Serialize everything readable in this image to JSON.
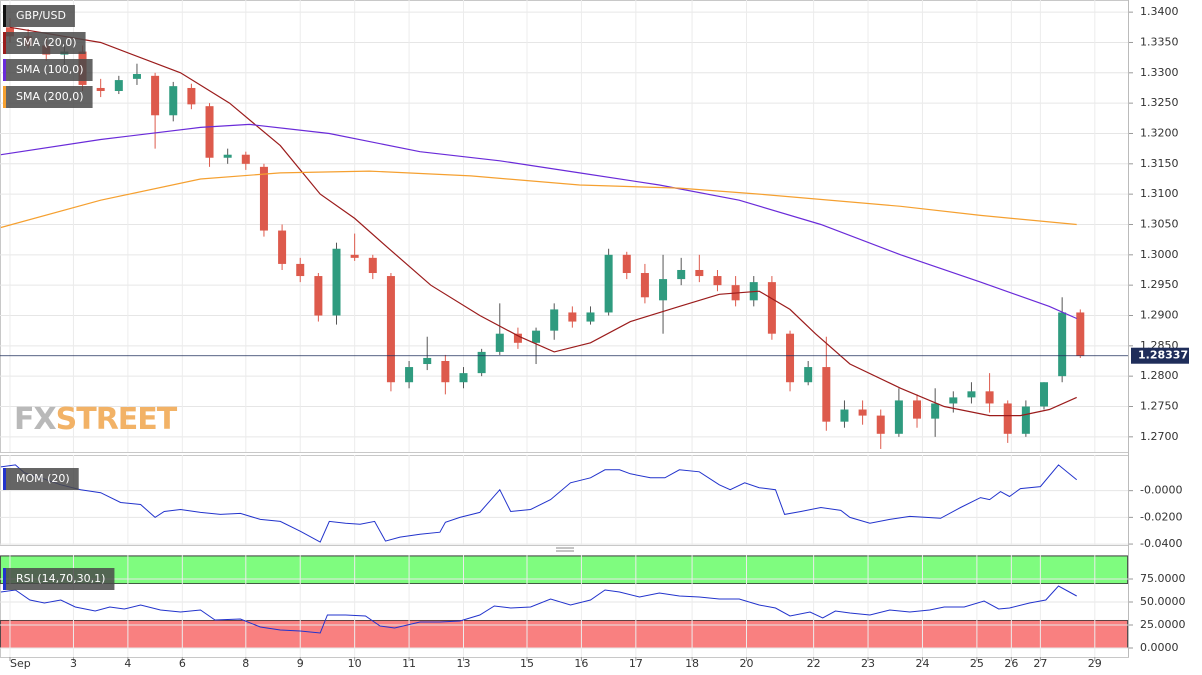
{
  "chart_data": [
    {
      "type": "candlestick",
      "name": "GBP/USD",
      "up_color": "#2f9b7f",
      "down_color": "#dd5a4c",
      "grid": true,
      "open": [
        1.3375,
        1.336,
        1.3345,
        1.333,
        1.3335,
        1.3275,
        1.327,
        1.329,
        1.3295,
        1.323,
        1.3275,
        1.3245,
        1.316,
        1.3165,
        1.3145,
        1.304,
        1.2985,
        1.2965,
        1.29,
        1.3,
        1.2995,
        1.2965,
        1.279,
        1.282,
        1.2825,
        1.279,
        1.2805,
        1.284,
        1.287,
        1.2855,
        1.2875,
        1.2905,
        1.289,
        1.2905,
        1.3,
        1.297,
        1.2925,
        1.296,
        1.2975,
        1.2965,
        1.295,
        1.2925,
        1.2955,
        1.287,
        1.279,
        1.2815,
        1.2725,
        1.2745,
        1.2735,
        1.2705,
        1.276,
        1.273,
        1.2755,
        1.2765,
        1.2775,
        1.2755,
        1.2705,
        1.275,
        1.28,
        1.2905
      ],
      "high": [
        1.339,
        1.3372,
        1.336,
        1.3348,
        1.3345,
        1.329,
        1.3295,
        1.3315,
        1.33,
        1.3285,
        1.3282,
        1.325,
        1.3175,
        1.317,
        1.315,
        1.305,
        1.2995,
        1.297,
        1.302,
        1.3035,
        1.3,
        1.297,
        1.2825,
        1.2865,
        1.2835,
        1.2815,
        1.2845,
        1.292,
        1.288,
        1.288,
        1.292,
        1.2915,
        1.2915,
        1.301,
        1.3005,
        1.2985,
        1.3,
        1.2995,
        1.3,
        1.2975,
        1.2965,
        1.2965,
        1.2965,
        1.2875,
        1.2825,
        1.2865,
        1.276,
        1.276,
        1.2745,
        1.278,
        1.277,
        1.278,
        1.2775,
        1.279,
        1.2805,
        1.276,
        1.276,
        1.279,
        1.293,
        1.291
      ],
      "low": [
        1.335,
        1.334,
        1.332,
        1.331,
        1.327,
        1.326,
        1.3265,
        1.328,
        1.3175,
        1.322,
        1.324,
        1.3145,
        1.315,
        1.314,
        1.303,
        1.2975,
        1.2955,
        1.289,
        1.2885,
        1.299,
        1.296,
        1.2775,
        1.278,
        1.281,
        1.277,
        1.278,
        1.28,
        1.2835,
        1.2845,
        1.282,
        1.286,
        1.288,
        1.2885,
        1.29,
        1.296,
        1.292,
        1.287,
        1.295,
        1.2955,
        1.294,
        1.2915,
        1.2915,
        1.286,
        1.2775,
        1.2785,
        1.271,
        1.2715,
        1.272,
        1.268,
        1.27,
        1.2715,
        1.27,
        1.274,
        1.2755,
        1.274,
        1.269,
        1.27,
        1.2745,
        1.279,
        1.283
      ],
      "close": [
        1.336,
        1.3345,
        1.333,
        1.3335,
        1.328,
        1.327,
        1.3288,
        1.3298,
        1.323,
        1.3278,
        1.3248,
        1.316,
        1.3165,
        1.315,
        1.304,
        1.2985,
        1.2965,
        1.29,
        1.301,
        1.2995,
        1.297,
        1.279,
        1.2815,
        1.283,
        1.279,
        1.2805,
        1.284,
        1.287,
        1.2855,
        1.2875,
        1.291,
        1.289,
        1.2905,
        1.3,
        1.297,
        1.293,
        1.296,
        1.2975,
        1.2965,
        1.295,
        1.2925,
        1.2955,
        1.287,
        1.279,
        1.2815,
        1.2725,
        1.2745,
        1.2735,
        1.2705,
        1.276,
        1.273,
        1.2755,
        1.2765,
        1.2775,
        1.2755,
        1.2705,
        1.275,
        1.279,
        1.2905,
        1.2834
      ],
      "overlays": [
        {
          "name": "SMA (20,0)",
          "color": "#9b1c1c",
          "x": [
            0,
            5,
            9.4,
            12.1,
            14.9,
            17.1,
            19,
            20.9,
            23.2,
            25.9,
            28.1,
            30,
            32,
            34.2,
            36.9,
            39.1,
            41.3,
            43,
            44.4,
            46.3,
            49.1,
            51.5,
            54,
            55.7,
            57.3,
            58.8
          ],
          "values": [
            1.3375,
            1.335,
            1.33,
            1.325,
            1.318,
            1.31,
            1.306,
            1.301,
            1.295,
            1.29,
            1.2865,
            1.284,
            1.2855,
            1.289,
            1.2915,
            1.2935,
            1.294,
            1.291,
            1.287,
            1.282,
            1.278,
            1.275,
            1.2735,
            1.2735,
            1.2745,
            1.2765
          ]
        },
        {
          "name": "SMA (100,0)",
          "color": "#6a2bd9",
          "x": [
            -0.5,
            5,
            10.5,
            13.2,
            17.6,
            22.6,
            27,
            31.4,
            35.8,
            40.2,
            44.7,
            49.1,
            53.5,
            57.3,
            58.8
          ],
          "values": [
            1.3165,
            1.319,
            1.321,
            1.3215,
            1.32,
            1.317,
            1.3155,
            1.3135,
            1.3115,
            1.309,
            1.305,
            1.3,
            1.2955,
            1.2915,
            1.2895
          ]
        },
        {
          "name": "SMA (200,0)",
          "color": "#f5a030",
          "x": [
            -0.5,
            5,
            10.5,
            14.9,
            19.8,
            25.4,
            31.4,
            36.9,
            41.3,
            49.1,
            53.5,
            58.8
          ],
          "values": [
            1.3045,
            1.309,
            1.3125,
            1.3135,
            1.3138,
            1.313,
            1.3115,
            1.311,
            1.31,
            1.308,
            1.3065,
            1.305
          ]
        }
      ],
      "last_price": {
        "value": 1.28337,
        "label": "1.28337",
        "color": "#1f2d5a"
      },
      "watermark": [
        "FX",
        "STREET"
      ],
      "xlim": [
        -0.55,
        61.63
      ],
      "ylim": [
        1.2675,
        1.342
      ],
      "yticks": [
        {
          "value": 1.34,
          "label": "1.3400"
        },
        {
          "value": 1.335,
          "label": "1.3350"
        },
        {
          "value": 1.33,
          "label": "1.3300"
        },
        {
          "value": 1.325,
          "label": "1.3250"
        },
        {
          "value": 1.32,
          "label": "1.3200"
        },
        {
          "value": 1.315,
          "label": "1.3150"
        },
        {
          "value": 1.31,
          "label": "1.3100"
        },
        {
          "value": 1.305,
          "label": "1.3050"
        },
        {
          "value": 1.3,
          "label": "1.3000"
        },
        {
          "value": 1.295,
          "label": "1.2950"
        },
        {
          "value": 1.29,
          "label": "1.2900"
        },
        {
          "value": 1.285,
          "label": "1.2850"
        },
        {
          "value": 1.28,
          "label": "1.2800"
        },
        {
          "value": 1.275,
          "label": "1.2750"
        },
        {
          "value": 1.27,
          "label": "1.2700"
        }
      ]
    },
    {
      "type": "line",
      "grid": true,
      "series": [
        {
          "name": "MOM (20)",
          "color": "#2233cc",
          "x": [
            -0.5,
            0.3,
            0.8,
            1.7,
            2.8,
            3.9,
            5,
            6.1,
            7.2,
            8,
            8.5,
            9.4,
            10.5,
            11.6,
            12.7,
            13.8,
            14.9,
            16,
            17.1,
            17.6,
            18.5,
            19.3,
            20.1,
            20.7,
            21.5,
            22.6,
            23.7,
            24,
            24.8,
            25.9,
            27,
            27.6,
            28.7,
            29.8,
            30.9,
            32,
            32.8,
            33.6,
            34.2,
            35.3,
            36.1,
            36.9,
            38,
            39.1,
            39.7,
            40.5,
            41.3,
            42.2,
            42.7,
            43.6,
            44.7,
            45.8,
            46.3,
            47.4,
            48.5,
            49.6,
            51.3,
            52.4,
            53.5,
            54,
            54.6,
            55.1,
            55.7,
            56.8,
            57.8,
            58.8
          ],
          "values": [
            0.0178,
            0.0193,
            0.0133,
            0.0096,
            0.0044,
            0.0007,
            -0.0015,
            -0.0089,
            -0.0104,
            -0.02,
            -0.0156,
            -0.0141,
            -0.0163,
            -0.0178,
            -0.017,
            -0.0215,
            -0.023,
            -0.0304,
            -0.0385,
            -0.023,
            -0.0244,
            -0.0252,
            -0.023,
            -0.0378,
            -0.0348,
            -0.0326,
            -0.0311,
            -0.0237,
            -0.02,
            -0.0163,
            0.0007,
            -0.0156,
            -0.0141,
            -0.0067,
            0.0059,
            0.0096,
            0.0156,
            0.0156,
            0.0126,
            0.0096,
            0.0096,
            0.0156,
            0.0141,
            0.0044,
            0.0007,
            0.0059,
            0.0022,
            0.0007,
            -0.0178,
            -0.0156,
            -0.0126,
            -0.0148,
            -0.02,
            -0.0244,
            -0.0215,
            -0.0193,
            -0.0207,
            -0.0126,
            -0.0052,
            -0.0067,
            -0.0007,
            -0.0044,
            0.0015,
            0.003,
            0.0193,
            0.0081
          ]
        }
      ],
      "xlim": [
        -0.55,
        61.63
      ],
      "ylim": [
        -0.0407,
        0.0267
      ],
      "yticks": [
        {
          "value": 0,
          "label": "-0.0000"
        },
        {
          "value": -0.02,
          "label": "-0.0200"
        },
        {
          "value": -0.04,
          "label": "-0.0400"
        }
      ]
    },
    {
      "type": "line",
      "grid": true,
      "series": [
        {
          "name": "RSI (14,70,30,1)",
          "color": "#2233cc",
          "x": [
            -0.5,
            0.3,
            1.1,
            1.9,
            2.8,
            3.6,
            4.7,
            5.5,
            6.3,
            7.2,
            8.3,
            9.4,
            10.5,
            11.3,
            12.7,
            13.8,
            14.9,
            16,
            17.1,
            17.5,
            18.5,
            19.6,
            20.4,
            21.2,
            22.6,
            23.7,
            24.8,
            25.9,
            26.7,
            27.6,
            28.7,
            29.8,
            30.9,
            32,
            32.8,
            33.6,
            34.7,
            35.8,
            36.9,
            38,
            39.1,
            40.2,
            41.3,
            42.2,
            43,
            44.1,
            44.8,
            45.5,
            46.3,
            47.4,
            48.5,
            49.6,
            50.7,
            51.5,
            52.6,
            53.7,
            54.5,
            55.1,
            56.2,
            57.1,
            57.8,
            58.8
          ],
          "values": [
            60.9,
            63.0,
            52.2,
            48.9,
            52.2,
            44.6,
            40.2,
            44.6,
            42.4,
            46.7,
            41.3,
            39.1,
            41.3,
            30.4,
            31.5,
            22.8,
            19.6,
            18.5,
            16.3,
            35.9,
            35.9,
            34.8,
            23.9,
            21.7,
            28.3,
            28.3,
            29.3,
            35.9,
            45.7,
            43.5,
            44.6,
            53.3,
            46.7,
            52.2,
            63.0,
            60.9,
            55.4,
            59.8,
            56.5,
            55.4,
            53.3,
            53.3,
            46.7,
            43.5,
            34.8,
            39.1,
            32.6,
            40.2,
            38.0,
            35.9,
            41.3,
            39.1,
            41.3,
            44.6,
            44.6,
            51.1,
            42.4,
            43.5,
            48.9,
            52.2,
            67.4,
            56.5
          ]
        }
      ],
      "bands": [
        {
          "from": 70,
          "to": 100,
          "color": "#7ffc7f"
        },
        {
          "from": 0,
          "to": 30,
          "color": "#f98080"
        }
      ],
      "xlim": [
        -0.55,
        61.63
      ],
      "ylim": [
        -9.8,
        101.1
      ],
      "yticks": [
        {
          "value": 75,
          "label": "75.0000"
        },
        {
          "value": 50,
          "label": "50.0000"
        },
        {
          "value": 25,
          "label": "25.0000"
        },
        {
          "value": 0,
          "label": "0.0000"
        }
      ],
      "xticks": [
        {
          "value": 0,
          "label": "Sep"
        },
        {
          "value": 3.5,
          "label": "3"
        },
        {
          "value": 6.5,
          "label": "4"
        },
        {
          "value": 9.5,
          "label": "6"
        },
        {
          "value": 13,
          "label": "8"
        },
        {
          "value": 16,
          "label": "9"
        },
        {
          "value": 19,
          "label": "10"
        },
        {
          "value": 22,
          "label": "11"
        },
        {
          "value": 25,
          "label": "13"
        },
        {
          "value": 28.5,
          "label": "15"
        },
        {
          "value": 31.5,
          "label": "16"
        },
        {
          "value": 34.5,
          "label": "17"
        },
        {
          "value": 37.6,
          "label": "18"
        },
        {
          "value": 40.6,
          "label": "20"
        },
        {
          "value": 44.3,
          "label": "22"
        },
        {
          "value": 47.3,
          "label": "23"
        },
        {
          "value": 50.3,
          "label": "24"
        },
        {
          "value": 53.3,
          "label": "25"
        },
        {
          "value": 55.2,
          "label": "26"
        },
        {
          "value": 56.8,
          "label": "27"
        },
        {
          "value": 59.8,
          "label": "29"
        }
      ]
    }
  ]
}
